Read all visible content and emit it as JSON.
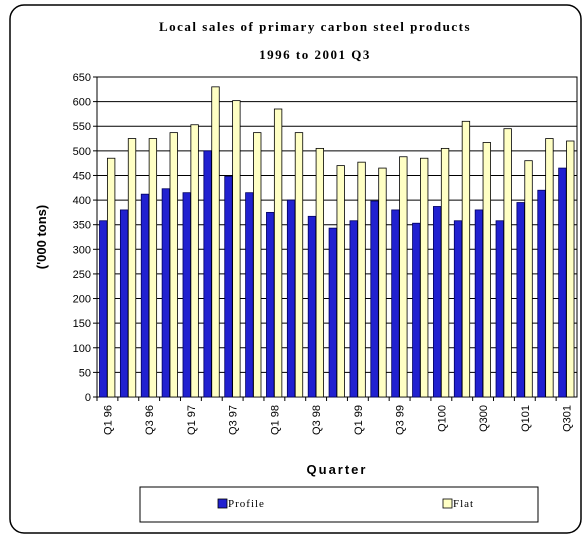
{
  "chart_data": {
    "type": "bar",
    "title": "Local sales of primary carbon steel products",
    "subtitle": "1996 to 2001 Q3",
    "y_label": "('000 tons)",
    "x_label": "Quarter",
    "categories": [
      "Q1 96",
      null,
      "Q3 96",
      null,
      "Q1 97",
      null,
      "Q3 97",
      null,
      "Q1 98",
      null,
      "Q3 98",
      null,
      "Q1 99",
      null,
      "Q3 99",
      null,
      "Q100",
      null,
      "Q300",
      null,
      "Q101",
      null,
      "Q301"
    ],
    "series": [
      {
        "name": "Profile",
        "color": "#2121d0",
        "values": [
          358,
          380,
          412,
          423,
          415,
          500,
          448,
          415,
          375,
          400,
          367,
          343,
          358,
          398,
          380,
          353,
          387,
          358,
          380,
          358,
          395,
          420,
          465
        ]
      },
      {
        "name": "Flat",
        "color": "#ffffc4",
        "values": [
          485,
          525,
          525,
          537,
          553,
          630,
          602,
          537,
          585,
          537,
          505,
          470,
          477,
          465,
          488,
          485,
          505,
          560,
          517,
          545,
          480,
          525,
          520
        ]
      }
    ],
    "ylim": [
      0,
      650
    ],
    "yticks": [
      0,
      50,
      100,
      150,
      200,
      250,
      300,
      350,
      400,
      450,
      500,
      550,
      600,
      650
    ],
    "grid": true,
    "legend": "bottom"
  }
}
